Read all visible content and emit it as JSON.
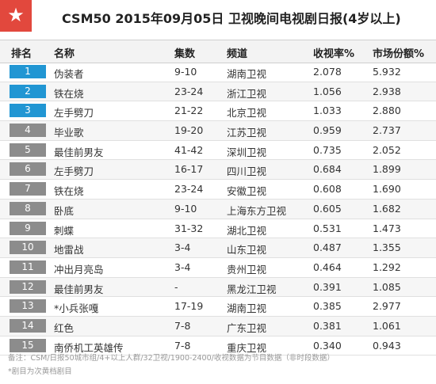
{
  "title": "CSM50  2015年09月05日  卫视晚间电视剧日报(4岁以上)",
  "icon": "star-icon",
  "colors": {
    "accent_red": "#e2483d",
    "top_blue": "#2196d3",
    "rank_gray": "#8c8c8c"
  },
  "headers": {
    "rank": "排名",
    "name": "名称",
    "episodes": "集数",
    "channel": "频道",
    "rating": "收视率%",
    "share": "市场份额%"
  },
  "rows": [
    {
      "rank": "1",
      "name": "伪装者",
      "episodes": "9-10",
      "channel": "湖南卫视",
      "rating": "2.078",
      "share": "5.932"
    },
    {
      "rank": "2",
      "name": "铁在烧",
      "episodes": "23-24",
      "channel": "浙江卫视",
      "rating": "1.056",
      "share": "2.938"
    },
    {
      "rank": "3",
      "name": "左手劈刀",
      "episodes": "21-22",
      "channel": "北京卫视",
      "rating": "1.033",
      "share": "2.880"
    },
    {
      "rank": "4",
      "name": "毕业歌",
      "episodes": "19-20",
      "channel": "江苏卫视",
      "rating": "0.959",
      "share": "2.737"
    },
    {
      "rank": "5",
      "name": "最佳前男友",
      "episodes": "41-42",
      "channel": "深圳卫视",
      "rating": "0.735",
      "share": "2.052"
    },
    {
      "rank": "6",
      "name": "左手劈刀",
      "episodes": "16-17",
      "channel": "四川卫视",
      "rating": "0.684",
      "share": "1.899"
    },
    {
      "rank": "7",
      "name": "铁在烧",
      "episodes": "23-24",
      "channel": "安徽卫视",
      "rating": "0.608",
      "share": "1.690"
    },
    {
      "rank": "8",
      "name": "卧底",
      "episodes": "9-10",
      "channel": "上海东方卫视",
      "rating": "0.605",
      "share": "1.682"
    },
    {
      "rank": "9",
      "name": "刺蝶",
      "episodes": "31-32",
      "channel": "湖北卫视",
      "rating": "0.531",
      "share": "1.473"
    },
    {
      "rank": "10",
      "name": "地雷战",
      "episodes": "3-4",
      "channel": "山东卫视",
      "rating": "0.487",
      "share": "1.355"
    },
    {
      "rank": "11",
      "name": "冲出月亮岛",
      "episodes": "3-4",
      "channel": "贵州卫视",
      "rating": "0.464",
      "share": "1.292"
    },
    {
      "rank": "12",
      "name": "最佳前男友",
      "episodes": "-",
      "channel": "黑龙江卫视",
      "rating": "0.391",
      "share": "1.085"
    },
    {
      "rank": "13",
      "name": "*小兵张嘎",
      "episodes": "17-19",
      "channel": "湖南卫视",
      "rating": "0.385",
      "share": "2.977"
    },
    {
      "rank": "14",
      "name": "红色",
      "episodes": "7-8",
      "channel": "广东卫视",
      "rating": "0.381",
      "share": "1.061"
    },
    {
      "rank": "15",
      "name": "南侨机工英雄传",
      "episodes": "7-8",
      "channel": "重庆卫视",
      "rating": "0.340",
      "share": "0.943"
    }
  ],
  "notes": {
    "source": "备注：CSM/日报50城市组/4+以上人群/32卫视/1900-2400/收视数据为节目数据（非时段数据）",
    "footnote": "*剧目为次黄档剧目"
  }
}
